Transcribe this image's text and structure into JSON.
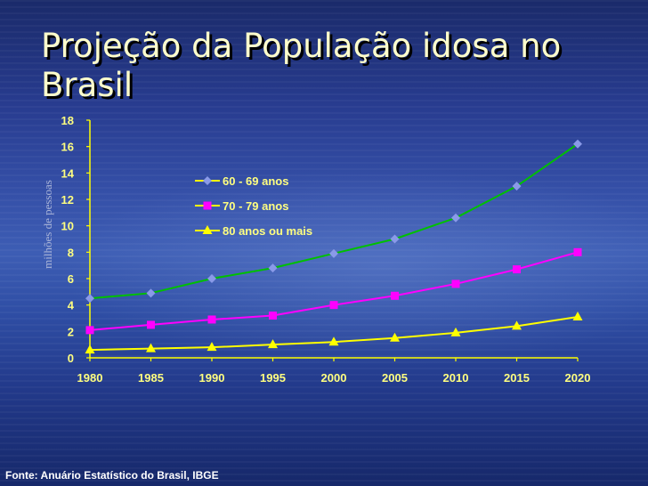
{
  "slide": {
    "title": "Projeção da População idosa no Brasil",
    "source": "Fonte: Anuário Estatístico do Brasil, IBGE"
  },
  "chart_data": {
    "type": "line",
    "title": "Projeção da População idosa no Brasil",
    "xlabel": "",
    "ylabel": "milhões de pessoas",
    "x": [
      1980,
      1985,
      1990,
      1995,
      2000,
      2005,
      2010,
      2015,
      2020
    ],
    "ylim": [
      0,
      18
    ],
    "yticks": [
      0,
      2,
      4,
      6,
      8,
      10,
      12,
      14,
      16,
      18
    ],
    "grid": false,
    "legend_position": "center",
    "series": [
      {
        "name": "60 - 69 anos",
        "color": "#00c000",
        "marker": "diamond",
        "marker_color": "#8a9ae8",
        "values": [
          4.5,
          4.9,
          6.0,
          6.8,
          7.9,
          9.0,
          10.6,
          13.0,
          16.2
        ]
      },
      {
        "name": "70 - 79 anos",
        "color": "#ff00ff",
        "marker": "square",
        "marker_color": "#ff00ff",
        "values": [
          2.1,
          2.5,
          2.9,
          3.2,
          4.0,
          4.7,
          5.6,
          6.7,
          8.0
        ]
      },
      {
        "name": "80 anos ou mais",
        "color": "#ffff00",
        "marker": "triangle",
        "marker_color": "#ffff00",
        "values": [
          0.6,
          0.7,
          0.8,
          1.0,
          1.2,
          1.5,
          1.9,
          2.4,
          3.1
        ]
      }
    ]
  }
}
